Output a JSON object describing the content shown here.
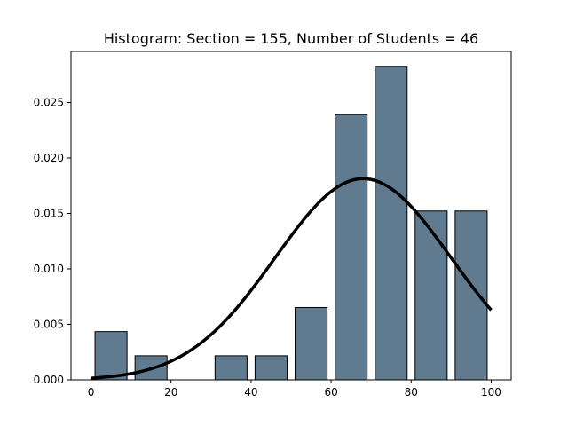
{
  "chart_data": {
    "type": "bar",
    "title": "Histogram: Section = 155,  Number of Students = 46",
    "xlabel": "",
    "ylabel": "",
    "xlim": [
      -5,
      105
    ],
    "ylim": [
      0,
      0.0296
    ],
    "xticks": [
      0,
      20,
      40,
      60,
      80,
      100
    ],
    "xtick_labels": [
      "0",
      "20",
      "40",
      "60",
      "80",
      "100"
    ],
    "yticks": [
      0,
      0.005,
      0.01,
      0.015,
      0.02,
      0.025
    ],
    "ytick_labels": [
      "0.000",
      "0.005",
      "0.010",
      "0.015",
      "0.020",
      "0.025"
    ],
    "bins": [
      {
        "start": 0,
        "end": 10,
        "density": 0.00435
      },
      {
        "start": 10,
        "end": 20,
        "density": 0.00217
      },
      {
        "start": 20,
        "end": 30,
        "density": 0.0
      },
      {
        "start": 30,
        "end": 40,
        "density": 0.00217
      },
      {
        "start": 40,
        "end": 50,
        "density": 0.00217
      },
      {
        "start": 50,
        "end": 60,
        "density": 0.00652
      },
      {
        "start": 60,
        "end": 70,
        "density": 0.02391
      },
      {
        "start": 70,
        "end": 80,
        "density": 0.02826
      },
      {
        "start": 80,
        "end": 90,
        "density": 0.01522
      },
      {
        "start": 90,
        "end": 100,
        "density": 0.01522
      }
    ],
    "curve": {
      "type": "normal",
      "mean": 68,
      "std": 22,
      "x_range": [
        0,
        100
      ]
    },
    "colors": {
      "bar_fill": "#607b8f",
      "bar_edge": "#000000",
      "curve": "#000000"
    },
    "grid": false
  }
}
